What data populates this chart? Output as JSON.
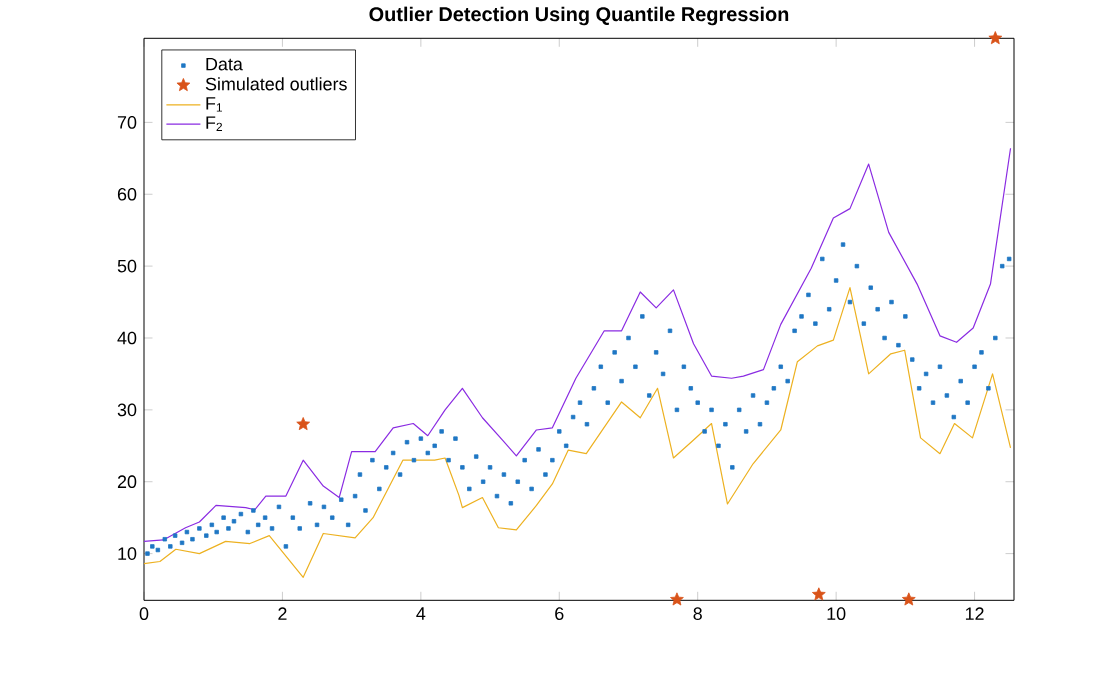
{
  "chart_data": {
    "type": "scatter",
    "title": "Outlier Detection Using Quantile Regression",
    "xlim": [
      0,
      12.57
    ],
    "ylim": [
      3.5,
      81.7
    ],
    "xticks": [
      0,
      2,
      4,
      6,
      8,
      10,
      12
    ],
    "yticks": [
      10,
      20,
      30,
      40,
      50,
      60,
      70
    ],
    "grid": false,
    "legend": "top left",
    "series": [
      {
        "name": "Data",
        "type": "scatter",
        "marker": "square",
        "color": "#1f77c4",
        "x": [
          0.05,
          0.12,
          0.2,
          0.3,
          0.38,
          0.45,
          0.55,
          0.62,
          0.7,
          0.8,
          0.9,
          0.98,
          1.05,
          1.15,
          1.22,
          1.3,
          1.4,
          1.5,
          1.58,
          1.65,
          1.75,
          1.85,
          1.95,
          2.05,
          2.15,
          2.25,
          2.4,
          2.5,
          2.6,
          2.72,
          2.85,
          2.95,
          3.05,
          3.12,
          3.2,
          3.3,
          3.4,
          3.5,
          3.6,
          3.7,
          3.8,
          3.9,
          4.0,
          4.1,
          4.2,
          4.3,
          4.4,
          4.5,
          4.6,
          4.7,
          4.8,
          4.9,
          5.0,
          5.1,
          5.2,
          5.3,
          5.4,
          5.5,
          5.6,
          5.7,
          5.8,
          5.9,
          6.0,
          6.1,
          6.2,
          6.3,
          6.4,
          6.5,
          6.6,
          6.7,
          6.8,
          6.9,
          7.0,
          7.1,
          7.2,
          7.3,
          7.4,
          7.5,
          7.6,
          7.7,
          7.8,
          7.9,
          8.0,
          8.1,
          8.2,
          8.3,
          8.4,
          8.5,
          8.6,
          8.7,
          8.8,
          8.9,
          9.0,
          9.1,
          9.2,
          9.3,
          9.4,
          9.5,
          9.6,
          9.7,
          9.8,
          9.9,
          10.0,
          10.1,
          10.2,
          10.3,
          10.4,
          10.5,
          10.6,
          10.7,
          10.8,
          10.9,
          11.0,
          11.1,
          11.2,
          11.3,
          11.4,
          11.5,
          11.6,
          11.7,
          11.8,
          11.9,
          12.0,
          12.1,
          12.2,
          12.3,
          12.4,
          12.5
        ],
        "values": [
          10,
          11,
          10.5,
          12,
          11,
          12.5,
          11.5,
          13,
          12,
          13.5,
          12.5,
          14,
          13,
          15,
          13.5,
          14.5,
          15.5,
          13,
          16,
          14,
          15,
          13.5,
          16.5,
          11,
          15,
          13.5,
          17,
          14,
          16.5,
          15,
          17.5,
          14,
          18,
          21,
          16,
          23,
          19,
          22,
          24,
          21,
          25.5,
          23,
          26,
          24,
          25,
          27,
          23,
          26,
          22,
          19,
          23.5,
          20,
          22,
          18,
          21,
          17,
          20,
          23,
          19,
          24.5,
          21,
          23,
          27,
          25,
          29,
          31,
          28,
          33,
          36,
          31,
          38,
          34,
          40,
          36,
          43,
          32,
          38,
          35,
          41,
          30,
          36,
          33,
          31,
          27,
          30,
          25,
          28,
          22,
          30,
          27,
          32,
          28,
          31,
          33,
          36,
          34,
          41,
          43,
          46,
          42,
          51,
          44,
          48,
          53,
          45,
          50,
          42,
          47,
          44,
          40,
          45,
          39,
          43,
          37,
          33,
          35,
          31,
          36,
          32,
          29,
          34,
          31,
          36,
          38,
          33,
          40,
          50,
          51
        ]
      },
      {
        "name": "Simulated outliers",
        "type": "scatter",
        "marker": "star",
        "color": "#d95319",
        "x": [
          2.3,
          7.7,
          9.75,
          11.05,
          12.3
        ],
        "values": [
          28,
          3.6,
          4.3,
          3.6,
          81.7
        ]
      },
      {
        "name": "F$_{1}$",
        "type": "line",
        "marker": "none",
        "color": "#edb120",
        "x": [
          0,
          0.23,
          0.46,
          0.8,
          1.18,
          1.53,
          1.81,
          2.3,
          2.59,
          3.05,
          3.31,
          3.74,
          4.2,
          4.35,
          4.55,
          4.6,
          4.89,
          5.12,
          5.38,
          5.67,
          5.9,
          6.13,
          6.39,
          6.9,
          7.17,
          7.42,
          7.65,
          7.94,
          8.2,
          8.43,
          8.8,
          9.2,
          9.44,
          9.73,
          9.96,
          10.2,
          10.47,
          10.79,
          10.99,
          11.22,
          11.5,
          11.71,
          11.97,
          12.26,
          12.52
        ],
        "values": [
          8.6,
          8.9,
          10.6,
          10,
          11.7,
          11.4,
          12.5,
          6.7,
          12.8,
          12.2,
          15,
          23,
          23,
          23.3,
          18.1,
          16.4,
          17.8,
          13.6,
          13.3,
          16.7,
          19.7,
          24.4,
          23.9,
          31.1,
          28.9,
          33,
          23.3,
          25.8,
          28.1,
          16.9,
          22.5,
          27.2,
          36.7,
          38.9,
          39.7,
          47,
          35,
          37.8,
          38.3,
          26.1,
          23.9,
          28.1,
          26.1,
          35,
          24.7
        ]
      },
      {
        "name": "F$_{2}$",
        "type": "line",
        "marker": "none",
        "color": "#8a2be2",
        "x": [
          0,
          0.28,
          0.6,
          0.8,
          1.04,
          1.47,
          1.6,
          1.76,
          2.05,
          2.3,
          2.59,
          2.82,
          3.0,
          3.34,
          3.6,
          3.89,
          4.1,
          4.35,
          4.6,
          4.89,
          5.18,
          5.38,
          5.67,
          5.9,
          6.24,
          6.65,
          6.9,
          7.17,
          7.4,
          7.65,
          7.94,
          8.2,
          8.49,
          8.66,
          8.95,
          9.2,
          9.64,
          9.96,
          10.2,
          10.47,
          10.76,
          11.17,
          11.5,
          11.74,
          11.98,
          12.23,
          12.52
        ],
        "values": [
          11.7,
          11.9,
          13.6,
          14.4,
          16.7,
          16.4,
          16.1,
          18,
          18,
          23,
          19.4,
          17.8,
          24.2,
          24.2,
          27.5,
          28.1,
          26.4,
          30,
          33,
          28.9,
          25.8,
          23.6,
          27.2,
          27.5,
          34.4,
          41,
          41,
          46.4,
          44.2,
          46.7,
          39.2,
          34.7,
          34.4,
          34.7,
          35.6,
          41.9,
          49.7,
          56.7,
          58,
          64.2,
          54.7,
          47.5,
          40.3,
          39.4,
          41.4,
          47.5,
          66.4
        ]
      }
    ]
  }
}
